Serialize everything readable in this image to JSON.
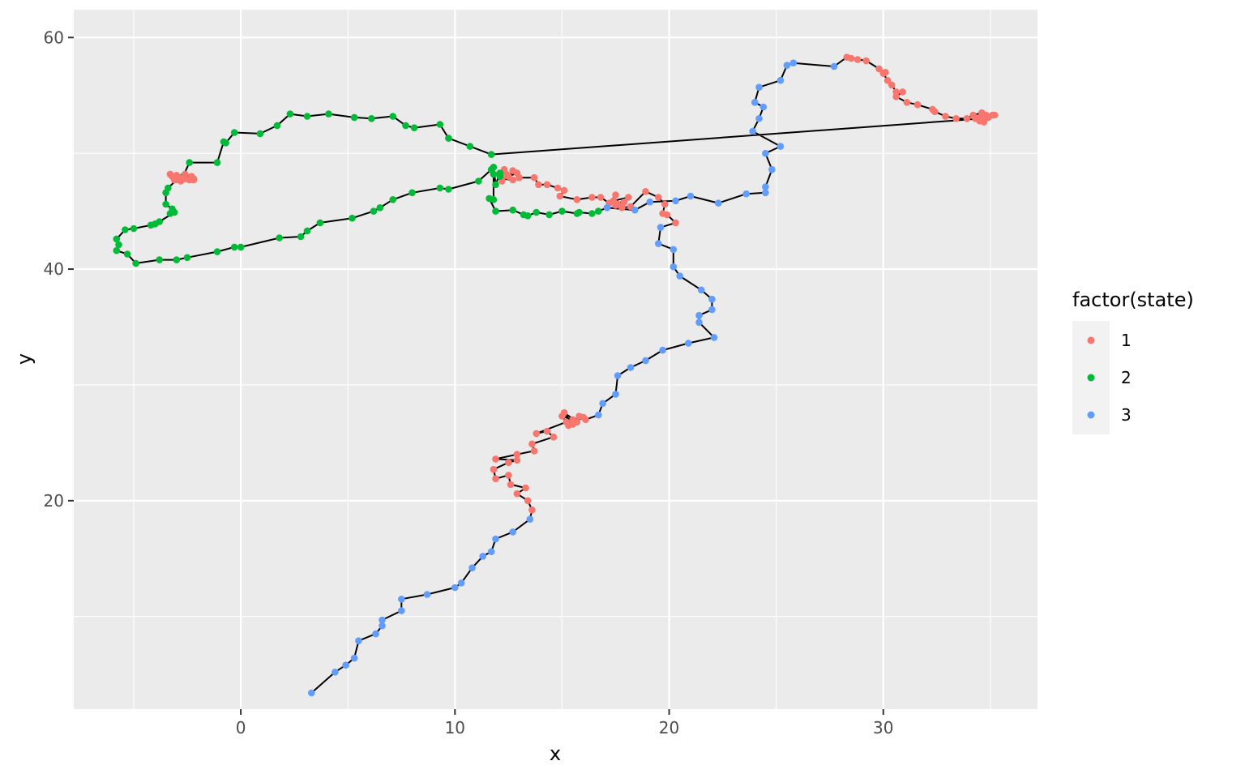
{
  "chart_data": {
    "type": "line",
    "title": "",
    "xlabel": "x",
    "ylabel": "y",
    "xlim": [
      -7.8,
      37.2
    ],
    "ylim": [
      2.0,
      62.4
    ],
    "x_ticks": [
      0,
      10,
      20,
      30
    ],
    "y_ticks": [
      20,
      40,
      60
    ],
    "x_tick_labels": [
      "0",
      "10",
      "20",
      "30"
    ],
    "y_tick_labels": [
      "20",
      "40",
      "60"
    ],
    "grid": true,
    "legend": {
      "title": "factor(state)",
      "position": "right",
      "entries": [
        {
          "label": "1",
          "color": "#F8766D"
        },
        {
          "label": "2",
          "color": "#00BA38"
        },
        {
          "label": "3",
          "color": "#619CFF"
        }
      ]
    },
    "path_color": "#000000",
    "series": [
      {
        "name": "3",
        "color": "#619CFF",
        "points": [
          [
            3.3,
            3.4
          ],
          [
            4.4,
            5.2
          ],
          [
            4.9,
            5.8
          ],
          [
            5.3,
            6.4
          ],
          [
            5.5,
            7.9
          ],
          [
            6.3,
            8.5
          ],
          [
            6.6,
            9.2
          ],
          [
            6.6,
            9.7
          ],
          [
            7.5,
            10.5
          ],
          [
            7.5,
            11.5
          ],
          [
            8.7,
            11.9
          ],
          [
            10.0,
            12.5
          ],
          [
            10.3,
            12.9
          ],
          [
            10.8,
            14.2
          ],
          [
            11.3,
            15.2
          ],
          [
            11.7,
            15.6
          ],
          [
            11.9,
            16.7
          ],
          [
            12.7,
            17.3
          ],
          [
            13.5,
            18.4
          ]
        ]
      },
      {
        "name": "1",
        "color": "#F8766D",
        "points": [
          [
            13.6,
            19.2
          ],
          [
            13.4,
            20.0
          ],
          [
            12.9,
            20.6
          ],
          [
            13.3,
            21.1
          ],
          [
            12.6,
            21.4
          ],
          [
            12.5,
            22.2
          ],
          [
            11.9,
            21.9
          ],
          [
            11.8,
            22.7
          ],
          [
            12.5,
            23.3
          ],
          [
            12.9,
            23.5
          ],
          [
            11.9,
            23.6
          ],
          [
            12.9,
            24.0
          ],
          [
            13.7,
            24.3
          ],
          [
            13.6,
            24.9
          ],
          [
            14.6,
            25.5
          ],
          [
            14.3,
            26.0
          ],
          [
            13.8,
            25.8
          ],
          [
            15.2,
            26.8
          ],
          [
            15.0,
            27.3
          ],
          [
            15.5,
            27.0
          ],
          [
            16.0,
            27.2
          ],
          [
            15.3,
            26.5
          ],
          [
            15.7,
            26.8
          ],
          [
            15.1,
            27.6
          ],
          [
            15.5,
            26.6
          ],
          [
            15.8,
            27.3
          ],
          [
            16.1,
            27.0
          ]
        ]
      },
      {
        "name": "3",
        "color": "#619CFF",
        "points": [
          [
            16.7,
            27.4
          ],
          [
            16.9,
            28.4
          ],
          [
            17.5,
            29.2
          ],
          [
            17.6,
            30.8
          ],
          [
            18.2,
            31.5
          ],
          [
            18.9,
            32.1
          ],
          [
            19.7,
            33.0
          ],
          [
            20.9,
            33.6
          ],
          [
            22.1,
            34.1
          ],
          [
            21.4,
            35.4
          ],
          [
            21.4,
            36.0
          ],
          [
            22.0,
            36.5
          ],
          [
            22.0,
            37.4
          ],
          [
            21.5,
            38.2
          ],
          [
            20.5,
            39.4
          ],
          [
            20.2,
            40.2
          ],
          [
            20.2,
            41.7
          ],
          [
            19.5,
            42.2
          ],
          [
            19.6,
            43.6
          ]
        ]
      },
      {
        "name": "1",
        "color": "#F8766D",
        "points": [
          [
            20.3,
            44.0
          ],
          [
            19.9,
            44.7
          ],
          [
            19.7,
            44.8
          ],
          [
            19.8,
            45.6
          ],
          [
            19.5,
            46.2
          ],
          [
            18.9,
            46.7
          ],
          [
            18.2,
            45.4
          ],
          [
            17.8,
            45.3
          ],
          [
            17.5,
            45.5
          ],
          [
            17.9,
            45.8
          ],
          [
            17.6,
            45.6
          ],
          [
            18.1,
            46.2
          ],
          [
            17.4,
            45.9
          ],
          [
            17.5,
            46.4
          ],
          [
            17.2,
            45.7
          ],
          [
            16.8,
            46.2
          ],
          [
            16.4,
            46.2
          ],
          [
            15.7,
            46.0
          ],
          [
            14.9,
            46.3
          ],
          [
            15.1,
            46.8
          ],
          [
            14.8,
            47.0
          ],
          [
            14.3,
            47.3
          ],
          [
            13.9,
            47.3
          ],
          [
            13.7,
            47.9
          ],
          [
            13.0,
            47.9
          ],
          [
            12.9,
            48.3
          ],
          [
            12.5,
            48.0
          ],
          [
            12.7,
            48.5
          ],
          [
            12.9,
            48.3
          ],
          [
            12.4,
            48.2
          ],
          [
            12.7,
            47.7
          ],
          [
            12.2,
            47.8
          ],
          [
            12.3,
            48.6
          ],
          [
            12.2,
            47.6
          ]
        ]
      },
      {
        "name": "2",
        "color": "#00BA38",
        "points": [
          [
            12.1,
            48.0
          ],
          [
            12.1,
            48.3
          ],
          [
            11.9,
            47.3
          ],
          [
            11.8,
            48.8
          ],
          [
            11.8,
            48.2
          ],
          [
            11.8,
            46.0
          ],
          [
            11.6,
            46.1
          ],
          [
            11.9,
            45.0
          ],
          [
            12.7,
            45.1
          ],
          [
            13.2,
            44.7
          ],
          [
            13.4,
            44.6
          ],
          [
            13.8,
            44.9
          ],
          [
            14.4,
            44.7
          ],
          [
            15.0,
            45.0
          ],
          [
            15.7,
            44.8
          ],
          [
            15.8,
            44.9
          ],
          [
            16.4,
            44.8
          ],
          [
            16.7,
            45.0
          ]
        ]
      },
      {
        "name": "3",
        "color": "#619CFF",
        "points": [
          [
            17.1,
            45.3
          ],
          [
            18.4,
            45.1
          ],
          [
            19.1,
            45.8
          ],
          [
            20.3,
            45.9
          ],
          [
            21.0,
            46.3
          ],
          [
            22.3,
            45.7
          ],
          [
            23.6,
            46.5
          ],
          [
            24.5,
            46.6
          ],
          [
            24.5,
            47.1
          ],
          [
            24.8,
            48.6
          ],
          [
            24.5,
            50.0
          ],
          [
            25.2,
            50.6
          ],
          [
            23.9,
            51.9
          ],
          [
            24.2,
            53.0
          ],
          [
            24.4,
            54.0
          ],
          [
            24.0,
            54.4
          ],
          [
            24.2,
            55.7
          ],
          [
            25.2,
            56.3
          ],
          [
            25.5,
            57.6
          ],
          [
            25.8,
            57.8
          ],
          [
            27.7,
            57.5
          ]
        ]
      },
      {
        "name": "1",
        "color": "#F8766D",
        "points": [
          [
            28.3,
            58.3
          ],
          [
            28.5,
            58.2
          ],
          [
            28.8,
            58.1
          ],
          [
            29.2,
            58.0
          ],
          [
            29.8,
            57.3
          ],
          [
            30.1,
            57.0
          ],
          [
            30.0,
            56.9
          ],
          [
            30.2,
            56.3
          ],
          [
            30.4,
            55.9
          ],
          [
            30.6,
            55.3
          ],
          [
            30.9,
            55.3
          ],
          [
            30.6,
            54.9
          ],
          [
            31.1,
            54.4
          ],
          [
            31.6,
            54.2
          ],
          [
            32.3,
            53.8
          ],
          [
            32.4,
            53.6
          ],
          [
            32.9,
            53.2
          ],
          [
            33.4,
            53.0
          ],
          [
            33.9,
            53.0
          ],
          [
            34.2,
            53.3
          ],
          [
            34.6,
            53.5
          ],
          [
            34.9,
            53.1
          ],
          [
            34.5,
            52.8
          ],
          [
            35.1,
            53.3
          ],
          [
            34.7,
            52.7
          ],
          [
            34.3,
            53.0
          ],
          [
            35.2,
            53.3
          ],
          [
            34.5,
            53.1
          ],
          [
            34.8,
            53.3
          ],
          [
            34.6,
            53.0
          ]
        ]
      },
      {
        "name": "2",
        "color": "#00BA38",
        "points": [
          [
            11.7,
            49.9
          ],
          [
            10.7,
            50.6
          ],
          [
            9.7,
            51.3
          ],
          [
            9.3,
            52.5
          ],
          [
            8.1,
            52.2
          ],
          [
            7.7,
            52.4
          ],
          [
            7.1,
            53.2
          ],
          [
            6.1,
            53.0
          ],
          [
            5.3,
            53.1
          ],
          [
            4.1,
            53.4
          ],
          [
            3.1,
            53.2
          ],
          [
            2.3,
            53.4
          ],
          [
            1.7,
            52.4
          ],
          [
            0.9,
            51.7
          ],
          [
            -0.3,
            51.8
          ],
          [
            -0.7,
            50.9
          ],
          [
            -0.8,
            51.0
          ],
          [
            -1.1,
            49.2
          ]
        ]
      },
      {
        "name": "2",
        "color": "#00BA38",
        "points": [
          [
            -2.4,
            49.2
          ],
          [
            -2.7,
            48.0
          ]
        ]
      },
      {
        "name": "1",
        "color": "#F8766D",
        "points": [
          [
            -2.3,
            48.0
          ],
          [
            -2.6,
            48.2
          ],
          [
            -2.9,
            47.9
          ],
          [
            -3.1,
            47.7
          ],
          [
            -2.4,
            47.7
          ],
          [
            -3.3,
            48.2
          ],
          [
            -2.6,
            47.8
          ],
          [
            -3.0,
            48.1
          ],
          [
            -2.8,
            47.6
          ],
          [
            -2.2,
            47.8
          ],
          [
            -3.2,
            48.0
          ],
          [
            -2.7,
            47.8
          ],
          [
            -2.2,
            47.7
          ],
          [
            -3.0,
            47.7
          ]
        ]
      },
      {
        "name": "2",
        "color": "#00BA38",
        "points": [
          [
            -3.4,
            47.0
          ],
          [
            -3.5,
            46.6
          ],
          [
            -3.5,
            45.6
          ],
          [
            -3.2,
            45.2
          ],
          [
            -3.3,
            44.8
          ],
          [
            -3.1,
            44.9
          ],
          [
            -3.8,
            44.1
          ],
          [
            -4.0,
            43.9
          ],
          [
            -4.2,
            43.8
          ],
          [
            -5.0,
            43.5
          ],
          [
            -5.4,
            43.4
          ],
          [
            -5.8,
            42.6
          ],
          [
            -5.7,
            42.1
          ],
          [
            -5.8,
            41.6
          ],
          [
            -5.3,
            41.3
          ],
          [
            -4.9,
            40.5
          ],
          [
            -3.8,
            40.8
          ],
          [
            -3.0,
            40.8
          ],
          [
            -2.5,
            41.0
          ],
          [
            -1.1,
            41.5
          ],
          [
            -0.3,
            41.9
          ],
          [
            0.0,
            41.9
          ],
          [
            1.8,
            42.7
          ],
          [
            2.8,
            42.8
          ],
          [
            3.1,
            43.3
          ],
          [
            3.7,
            44.0
          ],
          [
            5.2,
            44.4
          ],
          [
            6.2,
            45.0
          ],
          [
            6.5,
            45.3
          ],
          [
            7.1,
            46.0
          ],
          [
            8.0,
            46.6
          ],
          [
            9.3,
            47.0
          ],
          [
            9.7,
            46.9
          ],
          [
            11.1,
            47.6
          ],
          [
            11.7,
            48.6
          ]
        ]
      }
    ]
  }
}
